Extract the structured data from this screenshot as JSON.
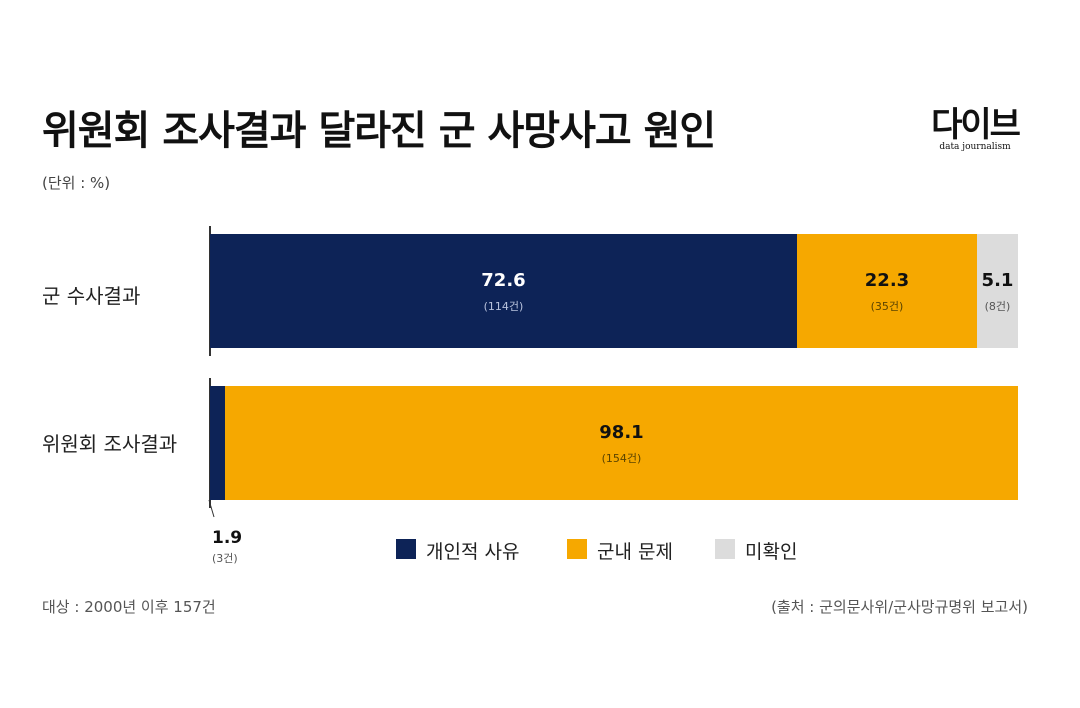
{
  "header": {
    "title": "위원회 조사결과 달라진 군 사망사고 원인",
    "unit": "(단위 : %)",
    "logo_main": "다이브",
    "logo_sub": "data journalism"
  },
  "colors": {
    "personal": "#0d2357",
    "military": "#f6a800",
    "unconfirmed": "#dcdcdc"
  },
  "chart_data": {
    "type": "bar",
    "orientation": "horizontal",
    "stacked": true,
    "categories": [
      "군 수사결과",
      "위원회 조사결과"
    ],
    "series": [
      {
        "name": "개인적 사유",
        "values": [
          72.6,
          1.9
        ],
        "counts": [
          "(114건)",
          "(3건)"
        ]
      },
      {
        "name": "군내 문제",
        "values": [
          22.3,
          98.1
        ],
        "counts": [
          "(35건)",
          "(154건)"
        ]
      },
      {
        "name": "미확인",
        "values": [
          5.1,
          0
        ],
        "counts": [
          "(8건)",
          ""
        ]
      }
    ],
    "unit": "(단위 : %)",
    "legend_position": "bottom",
    "xlim": [
      0,
      100
    ]
  },
  "footer": {
    "note": "대상 : 2000년 이후 157건",
    "source": "(출처 : 군의문사위/군사망규명위 보고서)"
  }
}
